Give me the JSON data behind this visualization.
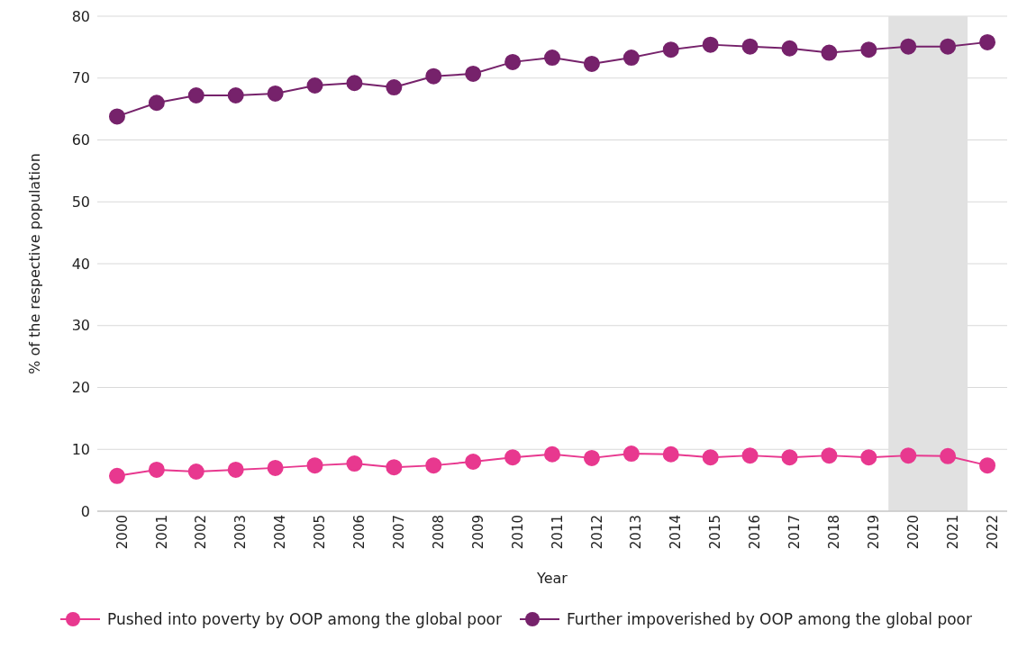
{
  "chart_data": {
    "type": "line",
    "xlabel": "Year",
    "ylabel": "% of the respective population",
    "categories": [
      "2000",
      "2001",
      "2002",
      "2003",
      "2004",
      "2005",
      "2006",
      "2007",
      "2008",
      "2009",
      "2010",
      "2011",
      "2012",
      "2013",
      "2014",
      "2015",
      "2016",
      "2017",
      "2018",
      "2019",
      "2020",
      "2021",
      "2022"
    ],
    "series": [
      {
        "name": "Pushed into poverty by OOP among the global poor",
        "color": "#e8388f",
        "values": [
          5.7,
          6.7,
          6.4,
          6.7,
          7.0,
          7.4,
          7.7,
          7.1,
          7.4,
          8.0,
          8.7,
          9.2,
          8.6,
          9.3,
          9.2,
          8.7,
          9.0,
          8.7,
          9.0,
          8.7,
          9.0,
          8.9,
          7.4
        ]
      },
      {
        "name": "Further impoverished by OOP among the global poor",
        "color": "#76226b",
        "values": [
          63.8,
          66.0,
          67.2,
          67.2,
          67.5,
          68.8,
          69.2,
          68.5,
          70.3,
          70.7,
          72.6,
          73.3,
          72.3,
          73.3,
          74.6,
          75.4,
          75.1,
          74.8,
          74.1,
          74.6,
          75.1,
          75.1,
          75.8
        ]
      }
    ],
    "ylim": [
      0,
      80
    ],
    "yticks": [
      0,
      10,
      20,
      30,
      40,
      50,
      60,
      70,
      80
    ],
    "grid": "y",
    "legend": "bottom",
    "marker": "circle",
    "line_style": "solid",
    "bands": [
      {
        "axis": "x",
        "from": "2020",
        "to": "2021",
        "color": "#e1e1e1"
      }
    ]
  }
}
